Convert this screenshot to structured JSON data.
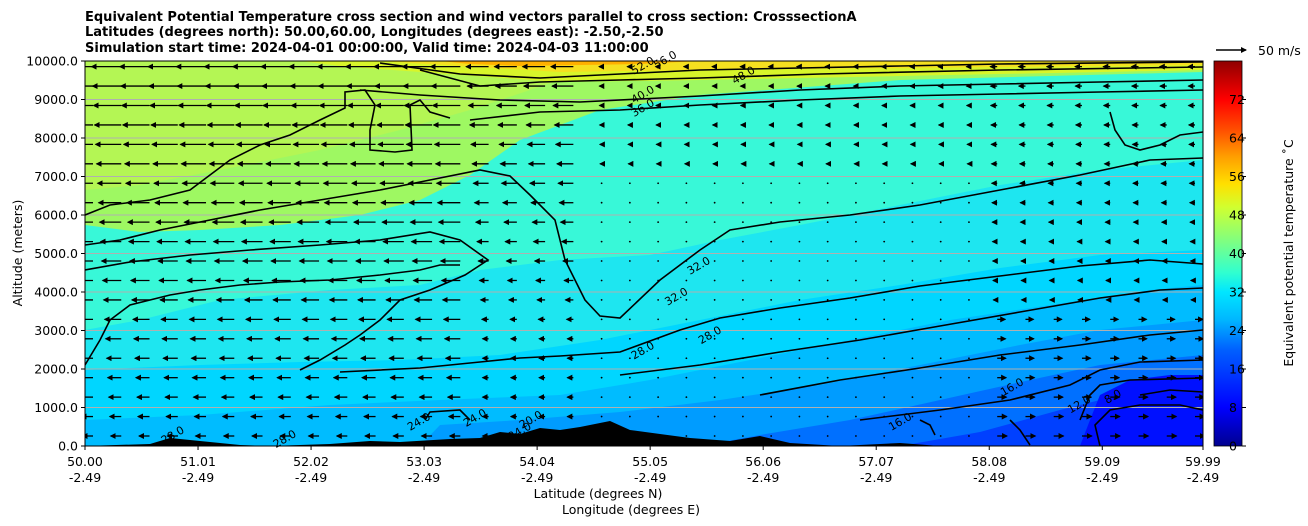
{
  "chart_data": {
    "type": "contourf_cross_section",
    "title_lines": [
      "Equivalent Potential Temperature cross section and wind vectors parallel to cross section: CrosssectionA",
      "Latitudes (degrees north): 50.00,60.00, Longitudes (degrees east): -2.50,-2.50",
      "Simulation start time: 2024-04-01 00:00:00, Valid time: 2024-04-03 11:00:00"
    ],
    "xlabel_line1": "Latitude (degrees N)",
    "xlabel_line2": "Longitude (degrees E)",
    "ylabel": "Altitude (meters)",
    "colorbar_label": "Equivalent potential temperature ˚C",
    "quiver_key_label": "50 m/s",
    "x_range": [
      50.0,
      59.99
    ],
    "y_range": [
      0,
      10000
    ],
    "x_ticks": [
      {
        "lat": "50.00",
        "lon": "-2.49"
      },
      {
        "lat": "51.01",
        "lon": "-2.49"
      },
      {
        "lat": "52.02",
        "lon": "-2.49"
      },
      {
        "lat": "53.03",
        "lon": "-2.49"
      },
      {
        "lat": "54.04",
        "lon": "-2.49"
      },
      {
        "lat": "55.05",
        "lon": "-2.49"
      },
      {
        "lat": "56.06",
        "lon": "-2.49"
      },
      {
        "lat": "57.07",
        "lon": "-2.49"
      },
      {
        "lat": "58.08",
        "lon": "-2.49"
      },
      {
        "lat": "59.09",
        "lon": "-2.49"
      },
      {
        "lat": "59.99",
        "lon": "-2.49"
      }
    ],
    "y_ticks": [
      "0.0",
      "1000.0",
      "2000.0",
      "3000.0",
      "4000.0",
      "5000.0",
      "6000.0",
      "7000.0",
      "8000.0",
      "9000.0",
      "10000.0"
    ],
    "colorbar_range": [
      0,
      80
    ],
    "colorbar_ticks": [
      "0",
      "8",
      "16",
      "24",
      "32",
      "40",
      "48",
      "56",
      "64",
      "72"
    ],
    "contour_levels": [
      12,
      16,
      24,
      28,
      32,
      36,
      40,
      48
    ],
    "contour_labels": [
      {
        "text": "48.0",
        "x": 55.9,
        "y": 9550
      },
      {
        "text": "52.0",
        "x": 55.0,
        "y": 9800
      },
      {
        "text": "56.0",
        "x": 55.2,
        "y": 9950
      },
      {
        "text": "40.0",
        "x": 55.0,
        "y": 9050
      },
      {
        "text": "36.0",
        "x": 55.0,
        "y": 8700
      },
      {
        "text": "32.0",
        "x": 55.5,
        "y": 4600
      },
      {
        "text": "32.0",
        "x": 55.3,
        "y": 3800
      },
      {
        "text": "28.0",
        "x": 55.0,
        "y": 2400
      },
      {
        "text": "28.0",
        "x": 55.6,
        "y": 2800
      },
      {
        "text": "28.0",
        "x": 50.8,
        "y": 200
      },
      {
        "text": "28.0",
        "x": 51.8,
        "y": 100
      },
      {
        "text": "24.0",
        "x": 53.0,
        "y": 550
      },
      {
        "text": "24.0",
        "x": 53.5,
        "y": 650
      },
      {
        "text": "24.0",
        "x": 53.9,
        "y": 300
      },
      {
        "text": "20.0",
        "x": 54.0,
        "y": 600
      },
      {
        "text": "16.0",
        "x": 57.3,
        "y": 550
      },
      {
        "text": "16.0",
        "x": 58.3,
        "y": 1450
      },
      {
        "text": "12.0",
        "x": 58.9,
        "y": 1000
      },
      {
        "text": "8.0",
        "x": 59.2,
        "y": 1200
      }
    ]
  }
}
